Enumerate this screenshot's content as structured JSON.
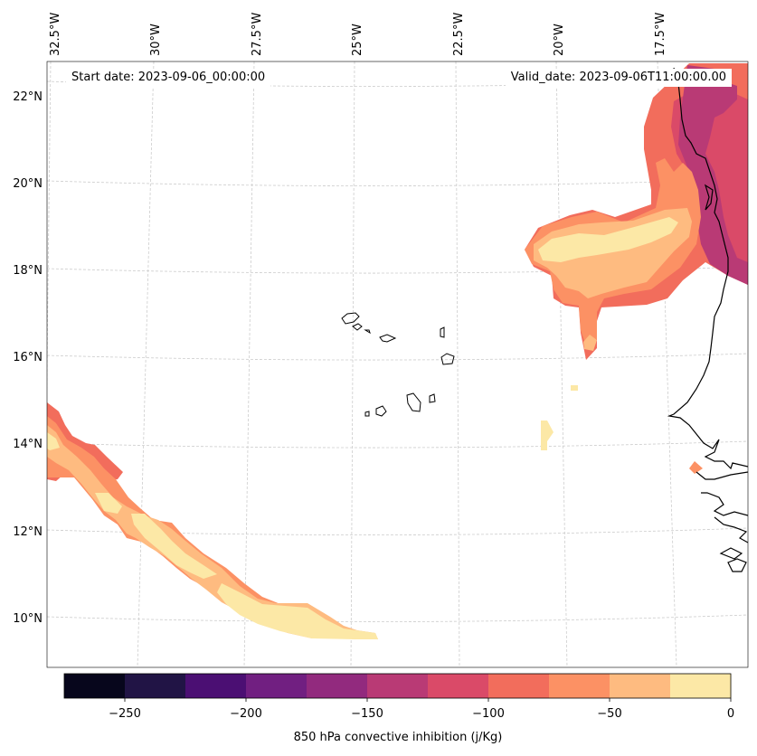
{
  "header": {
    "start_date": "Start date: 2023-09-06_00:00:00",
    "valid_date": "Valid_date: 2023-09-06T11:00:00.00"
  },
  "map": {
    "lon_labels": [
      "32.5°W",
      "30°W",
      "27.5°W",
      "25°W",
      "22.5°W",
      "20°W",
      "17.5°W"
    ],
    "lat_labels": [
      "22°N",
      "20°N",
      "18°N",
      "16°N",
      "14°N",
      "12°N",
      "10°N"
    ],
    "coastline_color": "#000000",
    "gridline_color": "#cccccc"
  },
  "colorbar": {
    "title": "850 hPa convective inhibition (j/Kg)",
    "tick_labels": [
      "−250",
      "−200",
      "−150",
      "−100",
      "−50",
      "0"
    ],
    "bins": [
      {
        "from": -275,
        "to": -250,
        "color": "#07061c"
      },
      {
        "from": -250,
        "to": -225,
        "color": "#211445"
      },
      {
        "from": -225,
        "to": -200,
        "color": "#4b0f73"
      },
      {
        "from": -200,
        "to": -175,
        "color": "#711f81"
      },
      {
        "from": -175,
        "to": -150,
        "color": "#922a7e"
      },
      {
        "from": -150,
        "to": -125,
        "color": "#b93a75"
      },
      {
        "from": -125,
        "to": -100,
        "color": "#da4a68"
      },
      {
        "from": -100,
        "to": -75,
        "color": "#f26d5c"
      },
      {
        "from": -75,
        "to": -50,
        "color": "#fc9164"
      },
      {
        "from": -50,
        "to": -25,
        "color": "#febb80"
      },
      {
        "from": -25,
        "to": 0,
        "color": "#fce8a6"
      }
    ]
  }
}
